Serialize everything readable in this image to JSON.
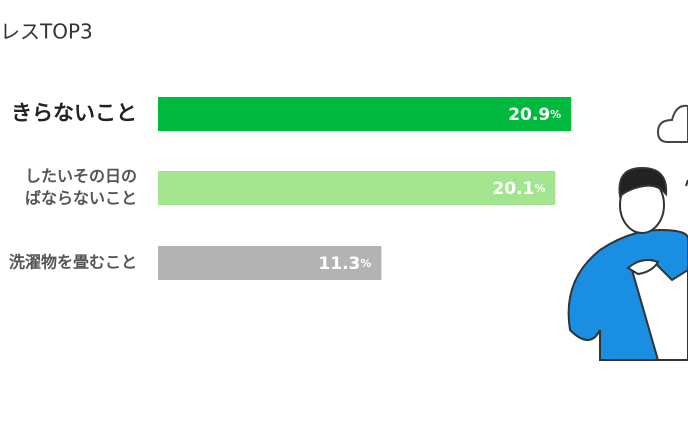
{
  "chart_data": {
    "type": "bar",
    "orientation": "horizontal",
    "title": "レスTOP3",
    "categories": [
      [
        "きらないこと"
      ],
      [
        "したいその日の",
        "ばならないこと"
      ],
      [
        "洗濯物を畳むこと"
      ]
    ],
    "values": [
      20.9,
      20.1,
      11.3
    ],
    "value_unit": "%",
    "colors": [
      "#00b93f",
      "#a3e48f",
      "#b3b3b3"
    ]
  }
}
